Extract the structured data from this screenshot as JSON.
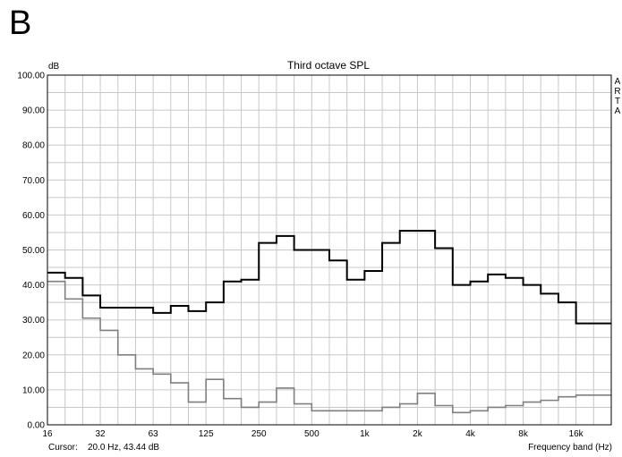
{
  "panel_label": "B",
  "cursor_label": "Cursor:",
  "cursor_value": "20.0 Hz, 43.44 dB",
  "watermark": [
    "A",
    "R",
    "T",
    "A"
  ],
  "colors": {
    "grid": "#c8c8c8",
    "series_1": "#000000",
    "series_2": "#7f7f7f",
    "frame": "#000000"
  },
  "chart_data": {
    "type": "line",
    "step": true,
    "title": "Third octave SPL",
    "ylabel": "dB",
    "xlabel": "Frequency band (Hz)",
    "ylim": [
      0,
      100
    ],
    "y_ticks": [
      "0.00",
      "10.00",
      "20.00",
      "30.00",
      "40.00",
      "50.00",
      "60.00",
      "70.00",
      "80.00",
      "90.00",
      "100.00"
    ],
    "x_ticks": [
      "16",
      "32",
      "63",
      "125",
      "250",
      "500",
      "1k",
      "2k",
      "4k",
      "8k",
      "16k"
    ],
    "grid": true,
    "bands_hz": [
      16,
      20,
      25,
      31.5,
      40,
      50,
      63,
      80,
      100,
      125,
      160,
      200,
      250,
      315,
      400,
      500,
      630,
      800,
      1000,
      1250,
      1600,
      2000,
      2500,
      3150,
      4000,
      5000,
      6300,
      8000,
      10000,
      12500,
      16000,
      20000
    ],
    "series": [
      {
        "values": [
          43.5,
          42,
          37,
          33.5,
          33.5,
          33.5,
          32,
          34,
          32.5,
          35,
          41,
          41.5,
          52,
          54,
          50,
          50,
          47,
          41.5,
          44,
          52,
          55.5,
          55.5,
          50.5,
          40,
          41,
          43,
          42,
          40,
          37.5,
          35,
          29,
          29
        ]
      },
      {
        "values": [
          41,
          36,
          30.5,
          27,
          20,
          16,
          14.5,
          12,
          6.5,
          13,
          7.5,
          5,
          6.5,
          10.5,
          6,
          4,
          4,
          4,
          4,
          5,
          6,
          9,
          5.5,
          3.5,
          4,
          5,
          5.5,
          6.5,
          7,
          8,
          8.5,
          8.5
        ]
      }
    ]
  }
}
